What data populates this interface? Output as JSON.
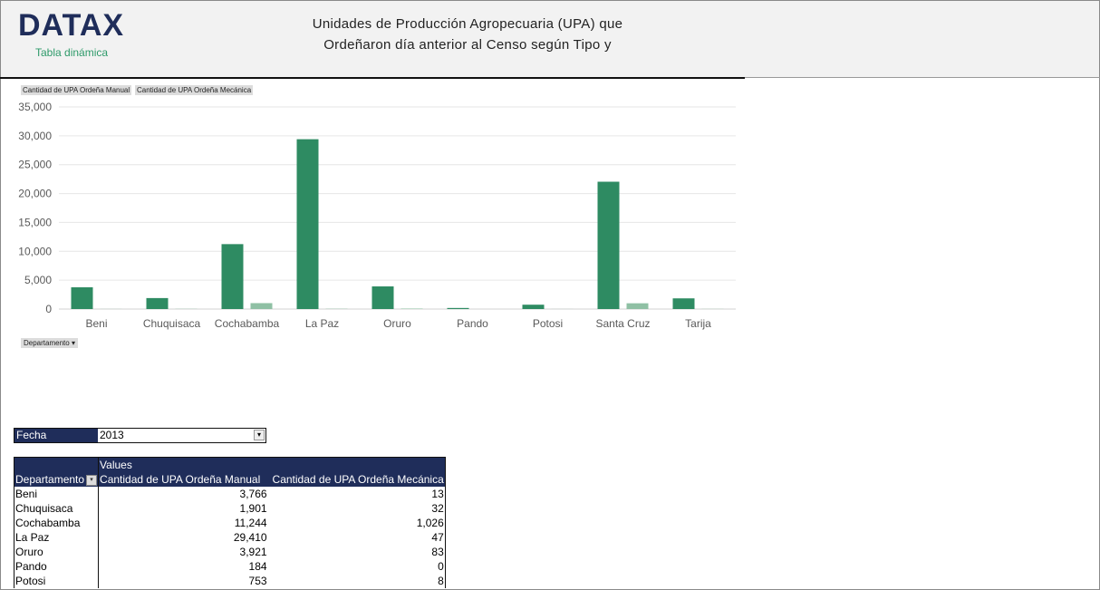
{
  "header": {
    "logo": "DATAX",
    "subtitle": "Tabla dinámica",
    "title_line1": "Unidades de Producción Agropecuaria (UPA) que",
    "title_line2": "Ordeñaron día anterior al Censo según Tipo y"
  },
  "chart_data": {
    "type": "bar",
    "categories": [
      "Beni",
      "Chuquisaca",
      "Cochabamba",
      "La Paz",
      "Oruro",
      "Pando",
      "Potosi",
      "Santa Cruz",
      "Tarija"
    ],
    "series": [
      {
        "name": "Cantidad de UPA Ordeña Manual",
        "color": "#2e8b62",
        "values": [
          3766,
          1901,
          11244,
          29410,
          3921,
          184,
          753,
          22050,
          1850
        ]
      },
      {
        "name": "Cantidad de UPA Ordeña Mecánica",
        "color": "#8fc0a4",
        "values": [
          13,
          32,
          1026,
          47,
          83,
          0,
          8,
          1000,
          20
        ]
      }
    ],
    "ylim": [
      0,
      35000
    ],
    "yticks": [
      "0",
      "5,000",
      "10,000",
      "15,000",
      "20,000",
      "25,000",
      "30,000",
      "35,000"
    ],
    "grid": true,
    "legend": "top-left",
    "axis_field_button": "Departamento"
  },
  "filter": {
    "label": "Fecha",
    "value": "2013"
  },
  "table": {
    "values_label": "Values",
    "headers": [
      "Departamento",
      "Cantidad de UPA Ordeña Manual",
      "Cantidad de UPA Ordeña Mecánica"
    ],
    "rows": [
      [
        "Beni",
        "3,766",
        "13"
      ],
      [
        "Chuquisaca",
        "1,901",
        "32"
      ],
      [
        "Cochabamba",
        "11,244",
        "1,026"
      ],
      [
        "La Paz",
        "29,410",
        "47"
      ],
      [
        "Oruro",
        "3,921",
        "83"
      ],
      [
        "Pando",
        "184",
        "0"
      ],
      [
        "Potosi",
        "753",
        "8"
      ]
    ]
  }
}
